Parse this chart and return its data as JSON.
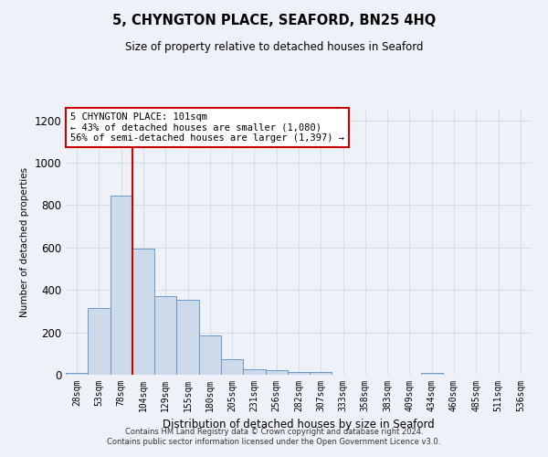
{
  "title": "5, CHYNGTON PLACE, SEAFORD, BN25 4HQ",
  "subtitle": "Size of property relative to detached houses in Seaford",
  "xlabel": "Distribution of detached houses by size in Seaford",
  "ylabel": "Number of detached properties",
  "categories": [
    "28sqm",
    "53sqm",
    "78sqm",
    "104sqm",
    "129sqm",
    "155sqm",
    "180sqm",
    "205sqm",
    "231sqm",
    "256sqm",
    "282sqm",
    "307sqm",
    "333sqm",
    "358sqm",
    "383sqm",
    "409sqm",
    "434sqm",
    "460sqm",
    "485sqm",
    "511sqm",
    "536sqm"
  ],
  "values": [
    10,
    315,
    845,
    595,
    370,
    355,
    185,
    75,
    25,
    20,
    15,
    15,
    0,
    0,
    0,
    0,
    10,
    0,
    0,
    0,
    0
  ],
  "bar_color": "#ccdaea",
  "bar_edge_color": "#6699cc",
  "grid_color": "#d5dde8",
  "background_color": "#eef2f8",
  "annotation_text": "5 CHYNGTON PLACE: 101sqm\n← 43% of detached houses are smaller (1,080)\n56% of semi-detached houses are larger (1,397) →",
  "annotation_box_color": "#ffffff",
  "annotation_box_edge": "#cc0000",
  "red_line_index": 2.5,
  "ylim": [
    0,
    1250
  ],
  "yticks": [
    0,
    200,
    400,
    600,
    800,
    1000,
    1200
  ],
  "footer_line1": "Contains HM Land Registry data © Crown copyright and database right 2024.",
  "footer_line2": "Contains public sector information licensed under the Open Government Licence v3.0."
}
